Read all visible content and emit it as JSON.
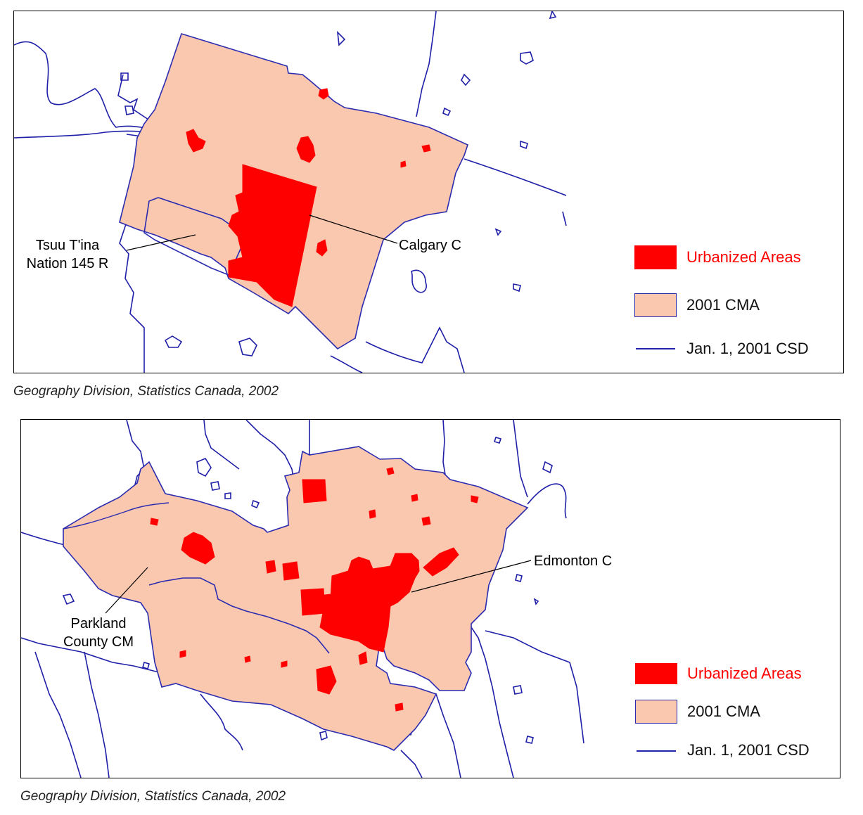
{
  "colors": {
    "urbanized": "#ff0000",
    "cma": "#fac8af",
    "csd_line": "#1f1fa8",
    "outline": "#000000"
  },
  "maps": [
    {
      "id": "calgary",
      "labels": {
        "tsuu_tina": [
          "Tsuu T'ina",
          "Nation 145 R"
        ],
        "calgary": "Calgary C"
      },
      "legend": {
        "urbanized": "Urbanized Areas",
        "cma": "2001 CMA",
        "csd": "Jan. 1, 2001 CSD"
      },
      "caption": "Geography Division, Statistics Canada, 2002"
    },
    {
      "id": "edmonton",
      "labels": {
        "edmonton": "Edmonton C",
        "parkland": [
          "Parkland",
          "County CM"
        ]
      },
      "legend": {
        "urbanized": "Urbanized Areas",
        "cma": "2001 CMA",
        "csd": "Jan. 1, 2001 CSD"
      },
      "caption": "Geography Division, Statistics Canada, 2002"
    }
  ]
}
